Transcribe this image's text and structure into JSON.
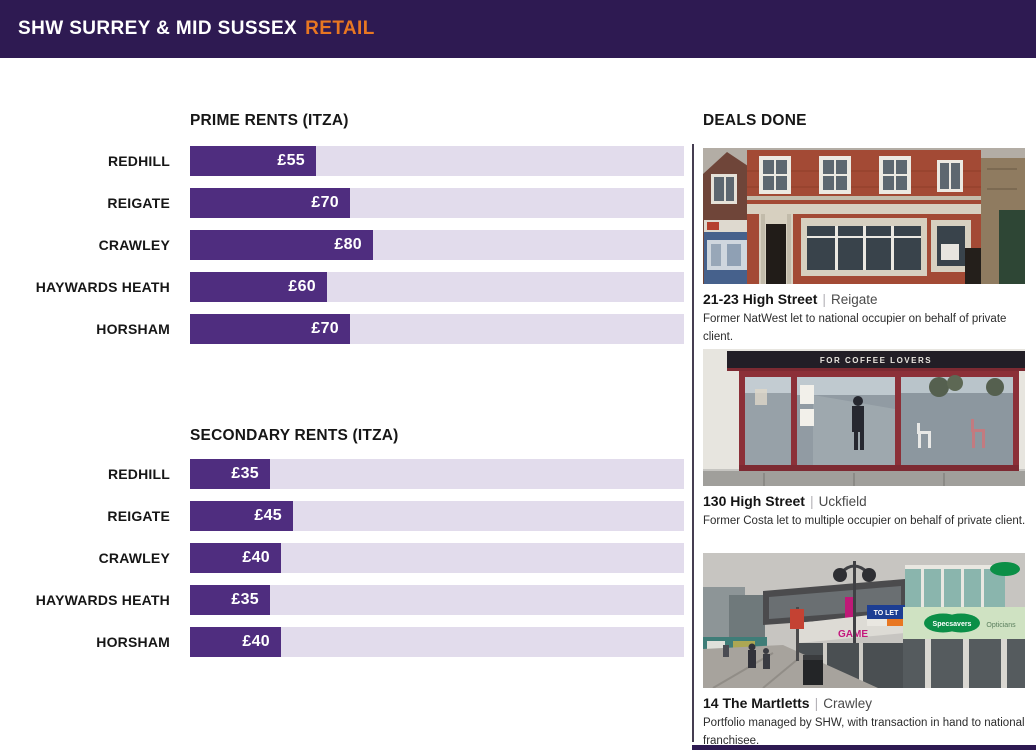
{
  "header": {
    "title": "SHW SURREY & MID SUSSEX",
    "highlight": "RETAIL"
  },
  "colors": {
    "header_bg": "#2E1A52",
    "accent_orange": "#E87722",
    "bar_fill": "#4F2D7F",
    "bar_track": "#E2DCEC",
    "divider": "#453D51",
    "text_dark": "#161616"
  },
  "chart_data": [
    {
      "type": "bar",
      "orientation": "horizontal",
      "title": "PRIME RENTS (ITZA)",
      "categories": [
        "REDHILL",
        "REIGATE",
        "CRAWLEY",
        "HAYWARDS HEATH",
        "HORSHAM"
      ],
      "values": [
        55,
        70,
        80,
        60,
        70
      ],
      "value_labels": [
        "£55",
        "£70",
        "£80",
        "£60",
        "£70"
      ],
      "value_prefix": "£",
      "xlim": [
        0,
        216
      ],
      "grid": false,
      "legend": false
    },
    {
      "type": "bar",
      "orientation": "horizontal",
      "title": "SECONDARY RENTS (ITZA)",
      "categories": [
        "REDHILL",
        "REIGATE",
        "CRAWLEY",
        "HAYWARDS HEATH",
        "HORSHAM"
      ],
      "values": [
        35,
        45,
        40,
        35,
        40
      ],
      "value_labels": [
        "£35",
        "£45",
        "£40",
        "£35",
        "£40"
      ],
      "value_prefix": "£",
      "xlim": [
        0,
        216
      ],
      "grid": false,
      "legend": false
    }
  ],
  "deals": {
    "title": "DEALS DONE",
    "items": [
      {
        "address": "21-23 High Street",
        "separator": "|",
        "location": "Reigate",
        "description": "Former NatWest let to national occupier on behalf of private client."
      },
      {
        "address": "130 High Street",
        "separator": "|",
        "location": "Uckfield",
        "description": "Former Costa let to multiple occupier on behalf of private client.",
        "photo_text": "FOR COFFEE LOVERS"
      },
      {
        "address": "14 The Martletts",
        "separator": "|",
        "location": "Crawley",
        "description": "Portfolio managed by SHW, with transaction in hand to national franchisee.",
        "signs": {
          "to_let": "TO LET",
          "game": "GAME",
          "specsavers": "Specsavers",
          "opticians": "Opticians"
        }
      }
    ]
  }
}
